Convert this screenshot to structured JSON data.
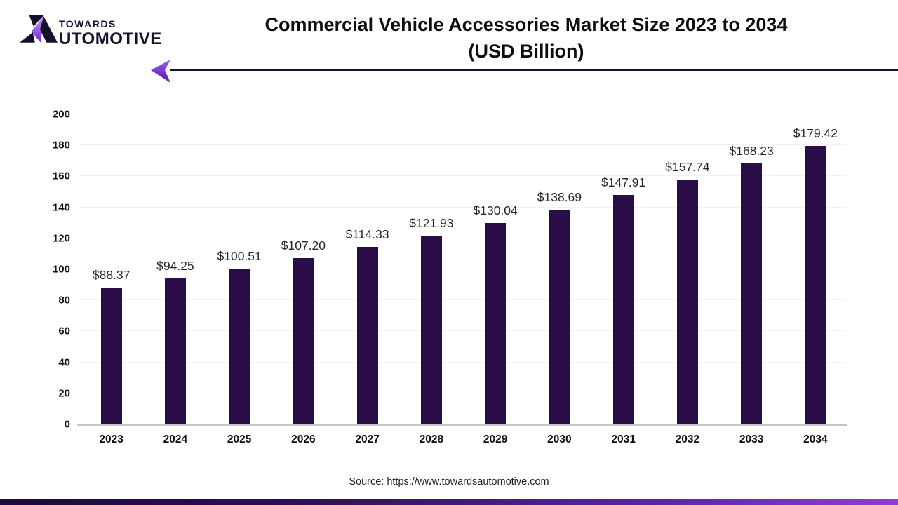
{
  "logo": {
    "top": "TOWARDS",
    "bottom_after_mark": "UTOMOTIVE",
    "mark_black": "#17102b",
    "mark_purple_light": "#b07ef0",
    "mark_purple_dark": "#6d28d9"
  },
  "title": {
    "line1": "Commercial Vehicle Accessories Market Size 2023 to 2034",
    "line2": "(USD Billion)"
  },
  "source": "Source: https://www.towardsautomotive.com",
  "chart_data": {
    "type": "bar",
    "title": "Commercial Vehicle Accessories Market Size 2023 to 2034 (USD Billion)",
    "unit": "USD Billion",
    "categories": [
      "2023",
      "2024",
      "2025",
      "2026",
      "2027",
      "2028",
      "2029",
      "2030",
      "2031",
      "2032",
      "2033",
      "2034"
    ],
    "values": [
      88.37,
      94.25,
      100.51,
      107.2,
      114.33,
      121.93,
      130.04,
      138.69,
      147.91,
      157.74,
      168.23,
      179.42
    ],
    "value_labels": [
      "$88.37",
      "$94.25",
      "$100.51",
      "$107.20",
      "$114.33",
      "$121.93",
      "$130.04",
      "$138.69",
      "$147.91",
      "$157.74",
      "$168.23",
      "$179.42"
    ],
    "xlabel": "",
    "ylabel": "",
    "ylim": [
      0,
      200
    ],
    "yticks": [
      0,
      20,
      40,
      60,
      80,
      100,
      120,
      140,
      160,
      180,
      200
    ],
    "grid": true,
    "legend": false,
    "bar_color": "#2a0d47"
  },
  "colors": {
    "bar": "#2a0d47",
    "gridline": "#f3f1f4",
    "baseline": "#c8c8c8",
    "header_line": "#15122e",
    "accent_purple": "#8b3fd6",
    "text": "#111111"
  }
}
